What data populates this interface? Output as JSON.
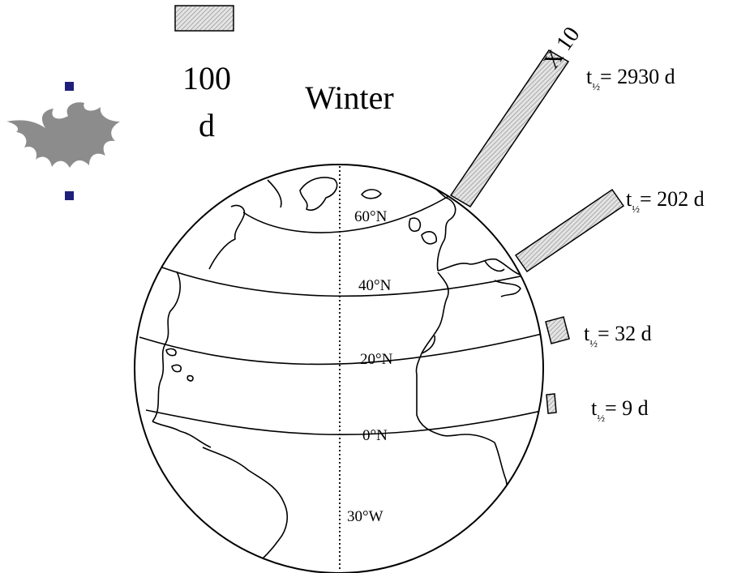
{
  "legend": {
    "scale_value": "100",
    "scale_unit": "d"
  },
  "season_label": "Winter",
  "scale_factor_label": "X 10",
  "latitude_labels": [
    "60°N",
    "40°N",
    "20°N",
    "0°N"
  ],
  "meridian_label": "30°W",
  "half_lives": [
    {
      "symbol": "t",
      "subscript": "½",
      "value": "= 2930 d"
    },
    {
      "symbol": "t",
      "subscript": "½",
      "value": "= 202 d"
    },
    {
      "symbol": "t",
      "subscript": "½",
      "value": "= 32 d"
    },
    {
      "symbol": "t",
      "subscript": "½",
      "value": "= 9 d"
    }
  ],
  "colors": {
    "bar_hatch": "#9a9a9a",
    "bar_fill": "#e4e4e4",
    "bullet": "#1f1f7a",
    "flame_logo": "#8c8c8c"
  }
}
